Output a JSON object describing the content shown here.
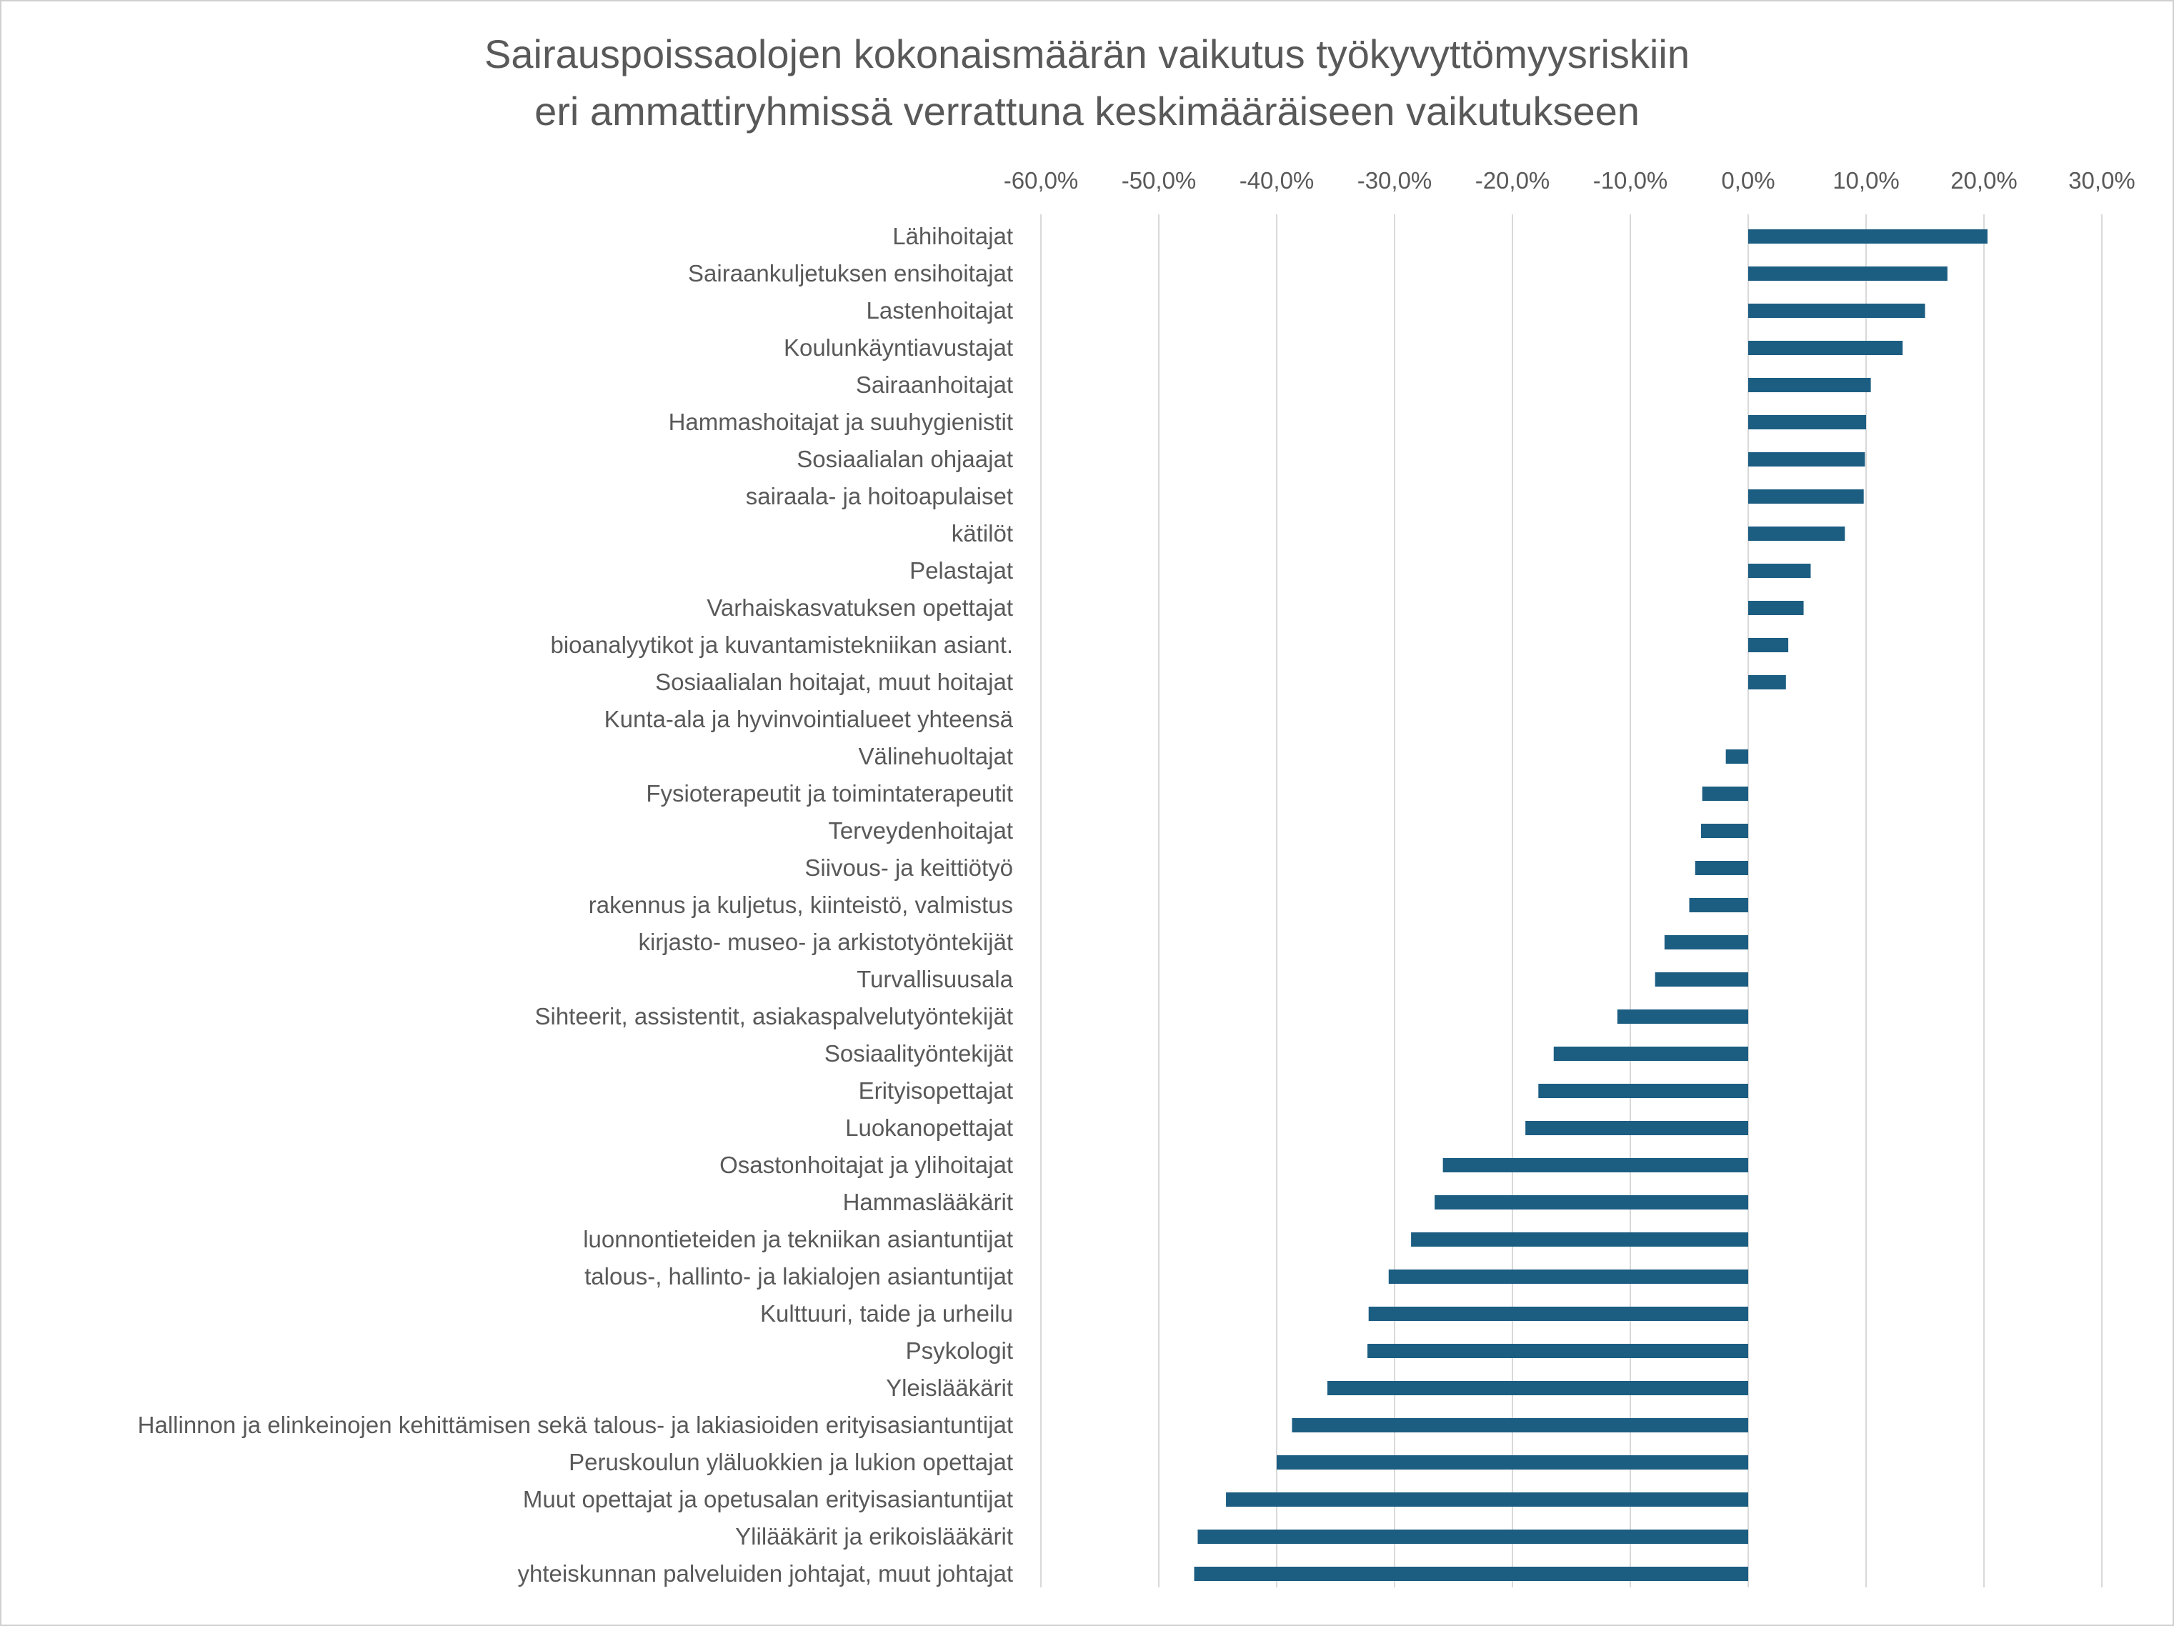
{
  "chart_data": {
    "type": "bar",
    "orientation": "horizontal",
    "title_lines": [
      "Sairauspoissaolojen kokonaismäärän vaikutus työkyvyttömyysriskiin",
      "eri ammattiryhmissä verrattuna keskimääräiseen vaikutukseen"
    ],
    "xlim": [
      -0.6,
      0.3
    ],
    "x_axis_position": "top",
    "grid": true,
    "legend": "none",
    "bar_color": "#1c5d82",
    "gridline_color": "#d9d9d9",
    "ticks": [
      {
        "value": -0.6,
        "label": "-60,0%"
      },
      {
        "value": -0.5,
        "label": "-50,0%"
      },
      {
        "value": -0.4,
        "label": "-40,0%"
      },
      {
        "value": -0.3,
        "label": "-30,0%"
      },
      {
        "value": -0.2,
        "label": "-20,0%"
      },
      {
        "value": -0.1,
        "label": "-10,0%"
      },
      {
        "value": 0.0,
        "label": "0,0%"
      },
      {
        "value": 0.1,
        "label": "10,0%"
      },
      {
        "value": 0.2,
        "label": "20,0%"
      },
      {
        "value": 0.3,
        "label": "30,0%"
      }
    ],
    "categories": [
      "Lähihoitajat",
      "Sairaankuljetuksen ensihoitajat",
      "Lastenhoitajat",
      "Koulunkäyntiavustajat",
      "Sairaanhoitajat",
      "Hammashoitajat ja suuhygienistit",
      "Sosiaalialan ohjaajat",
      "sairaala- ja hoitoapulaiset",
      "kätilöt",
      "Pelastajat",
      "Varhaiskasvatuksen opettajat",
      "bioanalyytikot ja kuvantamistekniikan asiant.",
      "Sosiaalialan hoitajat, muut hoitajat",
      "Kunta-ala ja hyvinvointialueet yhteensä",
      "Välinehuoltajat",
      "Fysioterapeutit ja toimintaterapeutit",
      "Terveydenhoitajat",
      "Siivous- ja keittiötyö",
      "rakennus ja kuljetus, kiinteistö, valmistus",
      "kirjasto- museo-  ja arkistotyöntekijät",
      "Turvallisuusala",
      "Sihteerit, assistentit, asiakaspalvelutyöntekijät",
      "Sosiaalityöntekijät",
      "Erityisopettajat",
      "Luokanopettajat",
      "Osastonhoitajat ja ylihoitajat",
      "Hammaslääkärit",
      "luonnontieteiden ja tekniikan asiantuntijat",
      "talous-, hallinto- ja lakialojen asiantuntijat",
      "Kulttuuri, taide ja urheilu",
      "Psykologit",
      "Yleislääkärit",
      "Hallinnon ja elinkeinojen kehittämisen sekä talous- ja lakiasioiden erityisasiantuntijat",
      "Peruskoulun yläluokkien ja lukion opettajat",
      "Muut opettajat ja opetusalan erityisasiantuntijat",
      "Ylilääkärit ja erikoislääkärit",
      "yhteiskunnan palveluiden johtajat, muut johtajat"
    ],
    "values": [
      0.203,
      0.169,
      0.15,
      0.131,
      0.104,
      0.1,
      0.099,
      0.098,
      0.082,
      0.053,
      0.047,
      0.034,
      0.032,
      0.0,
      -0.019,
      -0.039,
      -0.04,
      -0.045,
      -0.05,
      -0.071,
      -0.079,
      -0.111,
      -0.165,
      -0.178,
      -0.189,
      -0.259,
      -0.266,
      -0.286,
      -0.305,
      -0.322,
      -0.323,
      -0.357,
      -0.387,
      -0.4,
      -0.443,
      -0.467,
      -0.47
    ]
  }
}
